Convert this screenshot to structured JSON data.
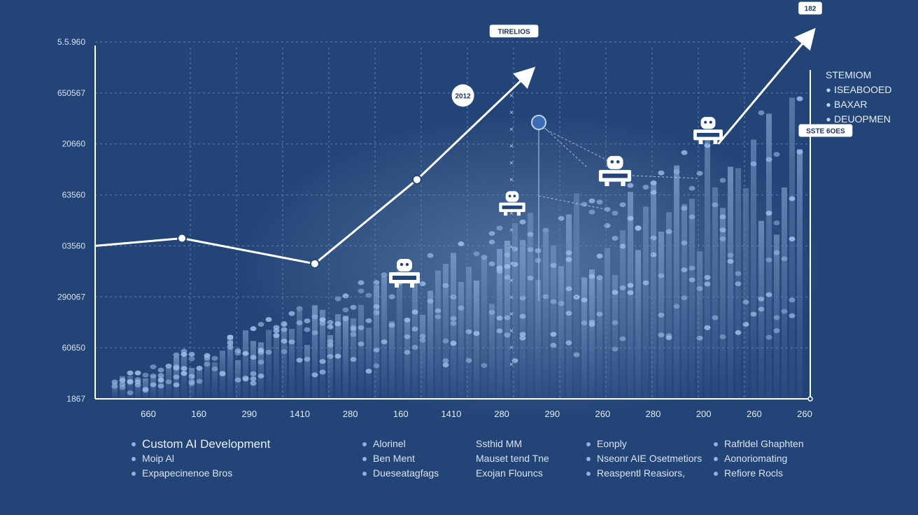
{
  "chart_data": {
    "type": "line",
    "title": "",
    "xlabel": "",
    "ylabel": "",
    "x_tick_labels": [
      "660",
      "160",
      "290",
      "1410",
      "280",
      "160",
      "1410",
      "280",
      "290",
      "260",
      "280",
      "200",
      "260",
      "260"
    ],
    "y_tick_labels": [
      "1867",
      "60650",
      "290067",
      "03560",
      "63560",
      "20660",
      "650567",
      "5.5.960"
    ],
    "ylim": [
      0,
      7
    ],
    "xlim": [
      0,
      14
    ],
    "grid": true,
    "series": [
      {
        "values": [
          {
            "x": 0.0,
            "y": 3.0
          },
          {
            "x": 1.7,
            "y": 3.15
          },
          {
            "x": 4.3,
            "y": 2.65
          },
          {
            "x": 6.3,
            "y": 4.3
          },
          {
            "x": 8.5,
            "y": 6.4
          }
        ]
      },
      {
        "values": [
          {
            "x": 12.2,
            "y": 5.0
          },
          {
            "x": 14.0,
            "y": 7.15
          }
        ]
      }
    ],
    "annotations": [
      {
        "text": "TIRELIOS",
        "x": 8.2,
        "y": 7.2
      },
      {
        "text": "182",
        "x": 14.0,
        "y": 7.65
      },
      {
        "text": "SSTE 6OES",
        "x": 14.3,
        "y": 5.25
      },
      {
        "text": "2012",
        "x": 7.2,
        "y": 5.95
      }
    ],
    "legend_position": "right",
    "legend_right": [
      "STEMIOM",
      "ISEABOOED",
      "BAXAR",
      "DEUOPMEN"
    ]
  },
  "footer_legend": {
    "columns": [
      [
        "Custom AI Development",
        "Moip Al",
        "Expapecinenoe Bros"
      ],
      [
        "Alorinel",
        "Ben Ment",
        "Dueseatagfags"
      ],
      [
        "Ssthid MM",
        "Mauset tend Tne",
        "Exojan Flouncs"
      ],
      [
        "Eonply",
        "Nseonr AIE Osetmetiors",
        "Reaspentl Reasiors,"
      ],
      [
        "Rafrldel Ghaphten",
        "Aonoriomating",
        "Refiore Rocls"
      ]
    ]
  },
  "colors": {
    "background": "#234476",
    "line": "#ffffff",
    "grid": "#5f7fae",
    "bars": "#8fb1e0"
  }
}
